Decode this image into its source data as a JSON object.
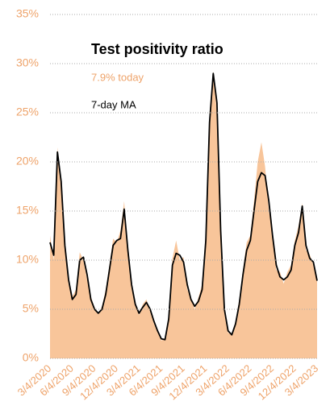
{
  "chart_data": {
    "type": "line",
    "title": "Test positivity ratio",
    "annotations": [
      "7.9% today"
    ],
    "categories": [
      "3/4/2020",
      null,
      null,
      null,
      null,
      null,
      "6/4/2020",
      null,
      null,
      null,
      null,
      null,
      "9/4/2020",
      null,
      null,
      null,
      null,
      null,
      "12/4/2020",
      null,
      null,
      null,
      null,
      null,
      "3/4/2021",
      null,
      null,
      null,
      null,
      null,
      "6/4/2021",
      null,
      null,
      null,
      null,
      null,
      "9/4/2021",
      null,
      null,
      null,
      null,
      null,
      "12/4/2021",
      null,
      null,
      null,
      null,
      null,
      "3/4/2022",
      null,
      null,
      null,
      null,
      null,
      "6/4/2022",
      null,
      null,
      null,
      null,
      null,
      "9/4/2022",
      null,
      null,
      null,
      null,
      null,
      "12/4/2022",
      null,
      null,
      null,
      null,
      null,
      "3/4/2023"
    ],
    "series": [
      {
        "color": "#f8c59a",
        "fill": true,
        "values": [
          12.5,
          10.0,
          21.5,
          17.0,
          12.0,
          7.5,
          6.3,
          7.0,
          10.8,
          10.0,
          8.0,
          6.3,
          5.2,
          4.5,
          5.3,
          7.0,
          9.5,
          12.2,
          11.8,
          13.0,
          16.0,
          10.5,
          7.0,
          5.8,
          4.4,
          5.5,
          6.0,
          4.8,
          3.6,
          3.0,
          1.8,
          2.1,
          4.5,
          10.2,
          12.0,
          10.0,
          10.3,
          7.0,
          6.2,
          5.0,
          6.2,
          7.5,
          13.0,
          25.0,
          29.2,
          25.0,
          12.0,
          4.6,
          2.6,
          2.5,
          3.8,
          6.0,
          9.0,
          11.8,
          12.5,
          16.0,
          20.0,
          22.0,
          19.5,
          15.0,
          13.0,
          9.0,
          8.8,
          7.6,
          8.8,
          9.5,
          12.0,
          13.5,
          15.8,
          11.0,
          10.6,
          9.5,
          7.9
        ]
      },
      {
        "name": "7-day MA",
        "color": "#000000",
        "fill": false,
        "values": [
          11.8,
          10.5,
          21.0,
          18.0,
          11.5,
          8.0,
          6.0,
          6.5,
          10.0,
          10.3,
          8.5,
          6.0,
          5.0,
          4.6,
          5.0,
          6.5,
          9.0,
          11.5,
          12.0,
          12.2,
          15.2,
          11.0,
          7.5,
          5.5,
          4.6,
          5.2,
          5.7,
          5.0,
          3.8,
          2.8,
          2.0,
          1.9,
          4.0,
          9.5,
          10.7,
          10.5,
          9.8,
          7.5,
          6.0,
          5.3,
          5.8,
          7.0,
          12.0,
          24.0,
          29.0,
          26.0,
          13.0,
          5.0,
          2.8,
          2.4,
          3.5,
          5.5,
          8.5,
          11.0,
          12.0,
          15.0,
          18.0,
          18.9,
          18.6,
          16.0,
          12.5,
          9.5,
          8.3,
          8.0,
          8.3,
          9.0,
          11.5,
          12.8,
          15.5,
          11.5,
          10.2,
          9.8,
          7.9
        ]
      }
    ],
    "ylim": [
      0,
      35
    ],
    "yticks": [
      {
        "value": 0,
        "label": "0%"
      },
      {
        "value": 5,
        "label": "5%"
      },
      {
        "value": 10,
        "label": "10%"
      },
      {
        "value": 15,
        "label": "15%"
      },
      {
        "value": 20,
        "label": "20%"
      },
      {
        "value": 25,
        "label": "25%"
      },
      {
        "value": 30,
        "label": "30%"
      },
      {
        "value": 35,
        "label": "35%"
      }
    ],
    "grid": true,
    "tick_color": "#eea36a",
    "annotation_color": "#eea36a"
  }
}
